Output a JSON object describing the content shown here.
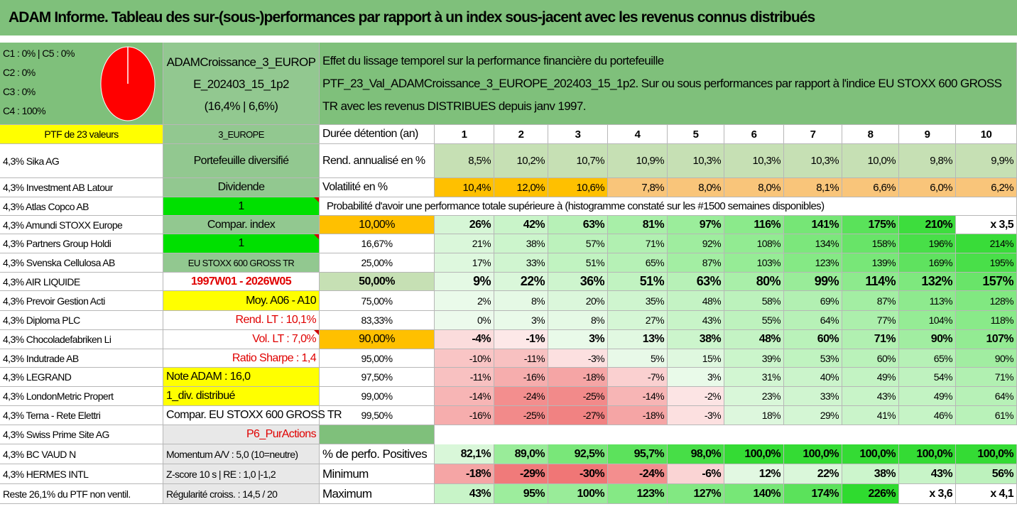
{
  "title": "ADAM Informe. Tableau des sur-(sous-)performances par rapport à un index sous-jacent avec les revenus connus distribués",
  "pie": {
    "lines": [
      "C1 : 0% | C5 : 0%",
      "C2 : 0%",
      "C3 : 0%",
      "C4 : 100%"
    ],
    "fill_color": "#ff0000",
    "stroke_color": "#ffffff"
  },
  "portfolio": {
    "name_lines": [
      "ADAMCroissance_3_EUROP",
      "E_202403_15_1p2",
      "(16,4% | 6,6%)"
    ],
    "desc_lines": [
      "Effet du lissage temporel sur la performance financière du portefeuille",
      "PTF_23_Val_ADAMCroissance_3_EUROPE_202403_15_1p2. Sur ou sous performances par rapport à l'indice EU STOXX 600 GROSS",
      "TR avec les revenus DISTRIBUES depuis janv 1997."
    ],
    "ptf_label": "PTF de 23 valeurs",
    "zone": "3_EUROPE"
  },
  "holdings": [
    "4,3% Sika AG",
    "4,3% Investment AB Latour",
    "4,3% Atlas Copco AB",
    "4,3% Amundi STOXX Europe",
    "4,3% Partners Group Holdi",
    "4,3% Svenska Cellulosa AB",
    "4,3% AIR LIQUIDE",
    "4,3% Prevoir Gestion Acti",
    "4,3% Diploma PLC",
    "4,3% Chocoladefabriken Li",
    "4,3% Indutrade AB",
    "4,3% LEGRAND",
    "4,3% LondonMetric Propert",
    "4,3% Terna - Rete Elettri",
    "4,3% Swiss Prime Site AG",
    "4,3% BC VAUD N",
    "4,3% HERMES INTL",
    "Reste 26,1% du PTF non ventil."
  ],
  "info": [
    "Portefeuille diversifié",
    "Dividende",
    "1",
    "Compar. index",
    "1",
    "EU STOXX 600 GROSS TR",
    "1997W01 - 2026W05",
    "Moy. A06 - A10",
    "Rend. LT : 10,1%",
    "Vol. LT : 7,0%",
    "Ratio Sharpe : 1,4",
    "Note ADAM : 16,0",
    "1_div. distribué",
    "Compar. EU STOXX 600 GROSS TR",
    "P6_PurActions",
    "Momentum A/V : 5,0 (10=neutre)",
    "Z-score 10 s | RE : 1,0 |-1,2",
    "Régularité croiss. : 14,5 / 20"
  ],
  "years_label": "Durée détention (an)",
  "years": [
    "1",
    "2",
    "3",
    "4",
    "5",
    "6",
    "7",
    "8",
    "9",
    "10"
  ],
  "rend_label": "Rend. annualisé en %",
  "rend": [
    "8,5%",
    "10,2%",
    "10,7%",
    "10,9%",
    "10,3%",
    "10,3%",
    "10,3%",
    "10,0%",
    "9,8%",
    "9,9%"
  ],
  "vol_label": "Volatilité en %",
  "vol": [
    "10,4%",
    "12,0%",
    "10,6%",
    "7,8%",
    "8,0%",
    "8,0%",
    "8,1%",
    "6,6%",
    "6,0%",
    "6,2%"
  ],
  "prob_header": "Probabilité d'avoir une performance totale supérieure à (histogramme constaté sur les #1500 semaines disponibles)",
  "quantiles": [
    {
      "p": "10,00%",
      "values": [
        "26%",
        "42%",
        "63%",
        "81%",
        "97%",
        "116%",
        "141%",
        "175%",
        "210%",
        "x 3,5"
      ]
    },
    {
      "p": "16,67%",
      "values": [
        "21%",
        "38%",
        "57%",
        "71%",
        "92%",
        "108%",
        "134%",
        "158%",
        "196%",
        "214%"
      ]
    },
    {
      "p": "25,00%",
      "values": [
        "17%",
        "33%",
        "51%",
        "65%",
        "87%",
        "103%",
        "123%",
        "139%",
        "169%",
        "195%"
      ]
    },
    {
      "p": "50,00%",
      "values": [
        "9%",
        "22%",
        "36%",
        "51%",
        "63%",
        "80%",
        "99%",
        "114%",
        "132%",
        "157%"
      ]
    },
    {
      "p": "75,00%",
      "values": [
        "2%",
        "8%",
        "20%",
        "35%",
        "48%",
        "58%",
        "69%",
        "87%",
        "113%",
        "128%"
      ]
    },
    {
      "p": "83,33%",
      "values": [
        "0%",
        "3%",
        "8%",
        "27%",
        "43%",
        "55%",
        "64%",
        "77%",
        "104%",
        "118%"
      ]
    },
    {
      "p": "90,00%",
      "values": [
        "-4%",
        "-1%",
        "3%",
        "13%",
        "38%",
        "48%",
        "60%",
        "71%",
        "90%",
        "107%"
      ]
    },
    {
      "p": "95,00%",
      "values": [
        "-10%",
        "-11%",
        "-3%",
        "5%",
        "15%",
        "39%",
        "53%",
        "60%",
        "65%",
        "90%"
      ]
    },
    {
      "p": "97,50%",
      "values": [
        "-11%",
        "-16%",
        "-18%",
        "-7%",
        "3%",
        "31%",
        "40%",
        "49%",
        "54%",
        "71%"
      ]
    },
    {
      "p": "99,00%",
      "values": [
        "-14%",
        "-24%",
        "-25%",
        "-14%",
        "-2%",
        "23%",
        "33%",
        "43%",
        "49%",
        "64%"
      ]
    },
    {
      "p": "99,50%",
      "values": [
        "-16%",
        "-25%",
        "-27%",
        "-18%",
        "-3%",
        "18%",
        "29%",
        "41%",
        "46%",
        "61%"
      ]
    }
  ],
  "pos_label": "% de perfo. Positives",
  "pos": [
    "82,1%",
    "89,0%",
    "92,5%",
    "95,7%",
    "98,0%",
    "100,0%",
    "100,0%",
    "100,0%",
    "100,0%",
    "100,0%"
  ],
  "min_label": "Minimum",
  "min": [
    "-18%",
    "-29%",
    "-30%",
    "-24%",
    "-6%",
    "12%",
    "22%",
    "38%",
    "43%",
    "56%"
  ],
  "max_label": "Maximum",
  "max": [
    "43%",
    "95%",
    "100%",
    "123%",
    "127%",
    "140%",
    "174%",
    "226%",
    "x 3,6",
    "x 4,1"
  ],
  "colors": {
    "header_green": "#7fc07b",
    "mid_green": "#92c890",
    "bright_green": "#00e000",
    "yellow": "#ffff00",
    "orange": "#ffc000",
    "pale_green": "#c6e0b4",
    "grey": "#e8e8e8",
    "red_text": "#e00000"
  }
}
